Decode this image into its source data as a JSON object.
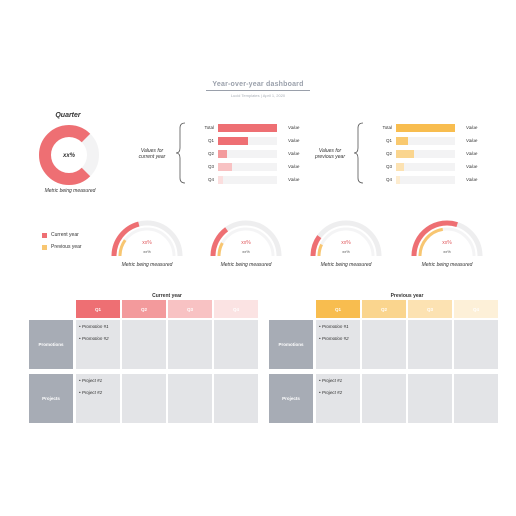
{
  "header": {
    "title": "Year-over-year dashboard",
    "subtitle": "Lucid Templates  |  April 1, 2020"
  },
  "quarter_donut": {
    "title": "Quarter",
    "center": "xx%",
    "caption": "Metric being measured",
    "value": 0.75,
    "color": "#ee6f73",
    "track": "#f3f3f4"
  },
  "bar_panels": [
    {
      "side_label_1": "Values for",
      "side_label_2": "current year",
      "color": "#ee6f73",
      "rows": [
        {
          "label": "Total",
          "value": 1.0,
          "color": "#ee6f73",
          "val_text": "Value"
        },
        {
          "label": "Q1",
          "value": 0.5,
          "color": "#ee6f73",
          "val_text": "Value"
        },
        {
          "label": "Q2",
          "value": 0.15,
          "color": "#f39a9c",
          "val_text": "Value"
        },
        {
          "label": "Q3",
          "value": 0.23,
          "color": "#f8c2c3",
          "val_text": "Value"
        },
        {
          "label": "Q4",
          "value": 0.09,
          "color": "#fbdede",
          "val_text": "Value"
        }
      ]
    },
    {
      "side_label_1": "Values for",
      "side_label_2": "previous year",
      "color": "#f8bd4f",
      "rows": [
        {
          "label": "Total",
          "value": 1.0,
          "color": "#f8bd4f",
          "val_text": "Value"
        },
        {
          "label": "Q1",
          "value": 0.2,
          "color": "#f9c96f",
          "val_text": "Value"
        },
        {
          "label": "Q2",
          "value": 0.3,
          "color": "#fad58e",
          "val_text": "Value"
        },
        {
          "label": "Q3",
          "value": 0.13,
          "color": "#fce2b2",
          "val_text": "Value"
        },
        {
          "label": "Q4",
          "value": 0.07,
          "color": "#fdeccf",
          "val_text": "Value"
        }
      ]
    }
  ],
  "legend": [
    {
      "label": "Current year",
      "color": "#ee6f73"
    },
    {
      "label": "Previous year",
      "color": "#f8c671"
    }
  ],
  "gauges": [
    {
      "caption": "Metric being measured",
      "pct_text": "xx%",
      "sub_text": "xx%",
      "outer": 0.42,
      "inner": 0.2
    },
    {
      "caption": "Metric being measured",
      "pct_text": "xx%",
      "sub_text": "xx%",
      "outer": 0.3,
      "inner": 0.16
    },
    {
      "caption": "Metric being measured",
      "pct_text": "xx%",
      "sub_text": "xx%",
      "outer": 0.2,
      "inner": 0.14
    },
    {
      "caption": "Metric being measured",
      "pct_text": "xx%",
      "sub_text": "xx%",
      "outer": 0.6,
      "inner": 0.45
    }
  ],
  "gauge_colors": {
    "outer": "#ee6f73",
    "inner": "#f8c671",
    "track": "#eeeeef",
    "text": "#e0585c"
  },
  "tables": [
    {
      "title": "Current year",
      "columns": [
        {
          "label": "Q1",
          "color": "#ee6f73"
        },
        {
          "label": "Q2",
          "color": "#f39a9c"
        },
        {
          "label": "Q3",
          "color": "#f8c2c3"
        },
        {
          "label": "Q4",
          "color": "#fbe3e3"
        }
      ],
      "rows": [
        {
          "label": "Promotions",
          "items": [
            "• Promotion #1",
            "• Promotion #2"
          ]
        },
        {
          "label": "Projects",
          "items": [
            "• Project #1",
            "• Project #2"
          ]
        }
      ]
    },
    {
      "title": "Previous year",
      "columns": [
        {
          "label": "Q1",
          "color": "#f8bd4f"
        },
        {
          "label": "Q2",
          "color": "#fad58e"
        },
        {
          "label": "Q3",
          "color": "#fce2b2"
        },
        {
          "label": "Q4",
          "color": "#fdf0d8"
        }
      ],
      "rows": [
        {
          "label": "Promotions",
          "items": [
            "• Promotion #1",
            "• Promotion #2"
          ]
        },
        {
          "label": "Projects",
          "items": [
            "• Project #1",
            "• Project #2"
          ]
        }
      ]
    }
  ]
}
